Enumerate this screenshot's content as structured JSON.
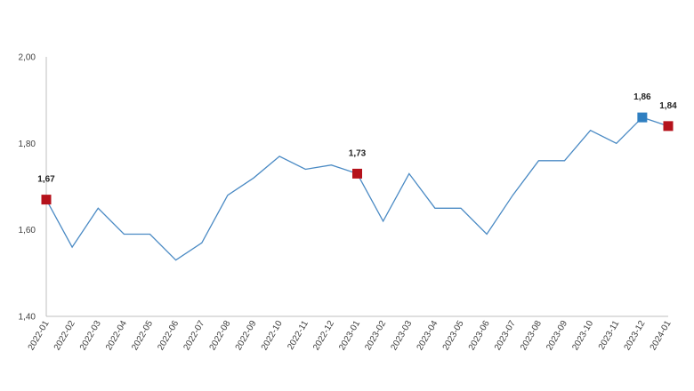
{
  "chart_data": {
    "type": "line",
    "title": "",
    "xlabel": "",
    "ylabel": "",
    "ylim": [
      1.4,
      2.0
    ],
    "yticks": [
      "1,40",
      "1,60",
      "1,80",
      "2,00"
    ],
    "grid": false,
    "legend": "none",
    "categories": [
      "2022-01",
      "2022-02",
      "2022-03",
      "2022-04",
      "2022-05",
      "2022-06",
      "2022-07",
      "2022-08",
      "2022-09",
      "2022-10",
      "2022-11",
      "2022-12",
      "2023-01",
      "2023-02",
      "2023-03",
      "2023-04",
      "2023-05",
      "2023-06",
      "2023-07",
      "2023-08",
      "2023-09",
      "2023-10",
      "2023-11",
      "2023-12",
      "2024-01"
    ],
    "series": [
      {
        "values": [
          1.67,
          1.56,
          1.65,
          1.59,
          1.59,
          1.53,
          1.57,
          1.68,
          1.72,
          1.77,
          1.74,
          1.75,
          1.73,
          1.62,
          1.73,
          1.65,
          1.65,
          1.59,
          1.68,
          1.76,
          1.76,
          1.83,
          1.8,
          1.86,
          1.84
        ],
        "color": "#4a8ac4"
      }
    ],
    "highlights": [
      {
        "category": "2022-01",
        "value": 1.67,
        "label": "1,67",
        "color": "#b5121b"
      },
      {
        "category": "2023-01",
        "value": 1.73,
        "label": "1,73",
        "color": "#b5121b"
      },
      {
        "category": "2023-12",
        "value": 1.86,
        "label": "1,86",
        "color": "#2f7fc1"
      },
      {
        "category": "2024-01",
        "value": 1.84,
        "label": "1,84",
        "color": "#b5121b"
      }
    ],
    "colors": {
      "axis": "#bfbfbf",
      "line": "#4a8ac4"
    }
  }
}
